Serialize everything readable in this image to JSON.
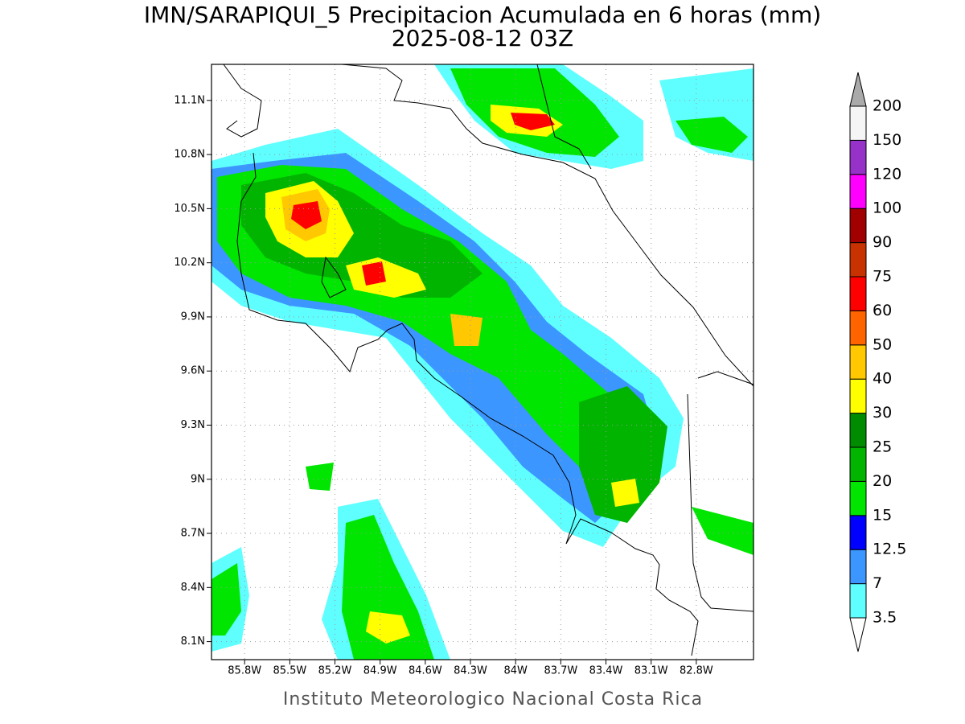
{
  "title": "IMN/SARAPIQUI_5 Precipitacion Acumulada en 6 horas (mm)",
  "subtitle": "2025-08-12 03Z",
  "footer": "Instituto Meteorologico Nacional Costa Rica",
  "map": {
    "xlim": [
      -86.02,
      -82.42
    ],
    "ylim": [
      8.0,
      11.3
    ],
    "xticks": [
      {
        "value": -85.8,
        "label": "85.8W"
      },
      {
        "value": -85.5,
        "label": "85.5W"
      },
      {
        "value": -85.2,
        "label": "85.2W"
      },
      {
        "value": -84.9,
        "label": "84.9W"
      },
      {
        "value": -84.6,
        "label": "84.6W"
      },
      {
        "value": -84.3,
        "label": "84.3W"
      },
      {
        "value": -84.0,
        "label": "84W"
      },
      {
        "value": -83.7,
        "label": "83.7W"
      },
      {
        "value": -83.4,
        "label": "83.4W"
      },
      {
        "value": -83.1,
        "label": "83.1W"
      },
      {
        "value": -82.8,
        "label": "82.8W"
      }
    ],
    "yticks": [
      {
        "value": 8.1,
        "label": "8.1N"
      },
      {
        "value": 8.4,
        "label": "8.4N"
      },
      {
        "value": 8.7,
        "label": "8.7N"
      },
      {
        "value": 9.0,
        "label": "9N"
      },
      {
        "value": 9.3,
        "label": "9.3N"
      },
      {
        "value": 9.6,
        "label": "9.6N"
      },
      {
        "value": 9.9,
        "label": "9.9N"
      },
      {
        "value": 10.2,
        "label": "10.2N"
      },
      {
        "value": 10.5,
        "label": "10.5N"
      },
      {
        "value": 10.8,
        "label": "10.8N"
      },
      {
        "value": 11.1,
        "label": "11.1N"
      }
    ],
    "grid": true
  },
  "colorbar": {
    "levels": [
      3.5,
      7,
      12.5,
      15,
      20,
      25,
      30,
      40,
      50,
      60,
      75,
      90,
      100,
      120,
      150,
      200
    ],
    "colors": [
      "#5fffff",
      "#3c96ff",
      "#0000ff",
      "#00e600",
      "#00b400",
      "#008c00",
      "#ffff00",
      "#ffc800",
      "#ff6400",
      "#ff0000",
      "#c83200",
      "#a00000",
      "#ff00ff",
      "#9632c8",
      "#f5f5f5"
    ],
    "under_color": "#ffffff",
    "over_color": "#aaaaaa"
  }
}
